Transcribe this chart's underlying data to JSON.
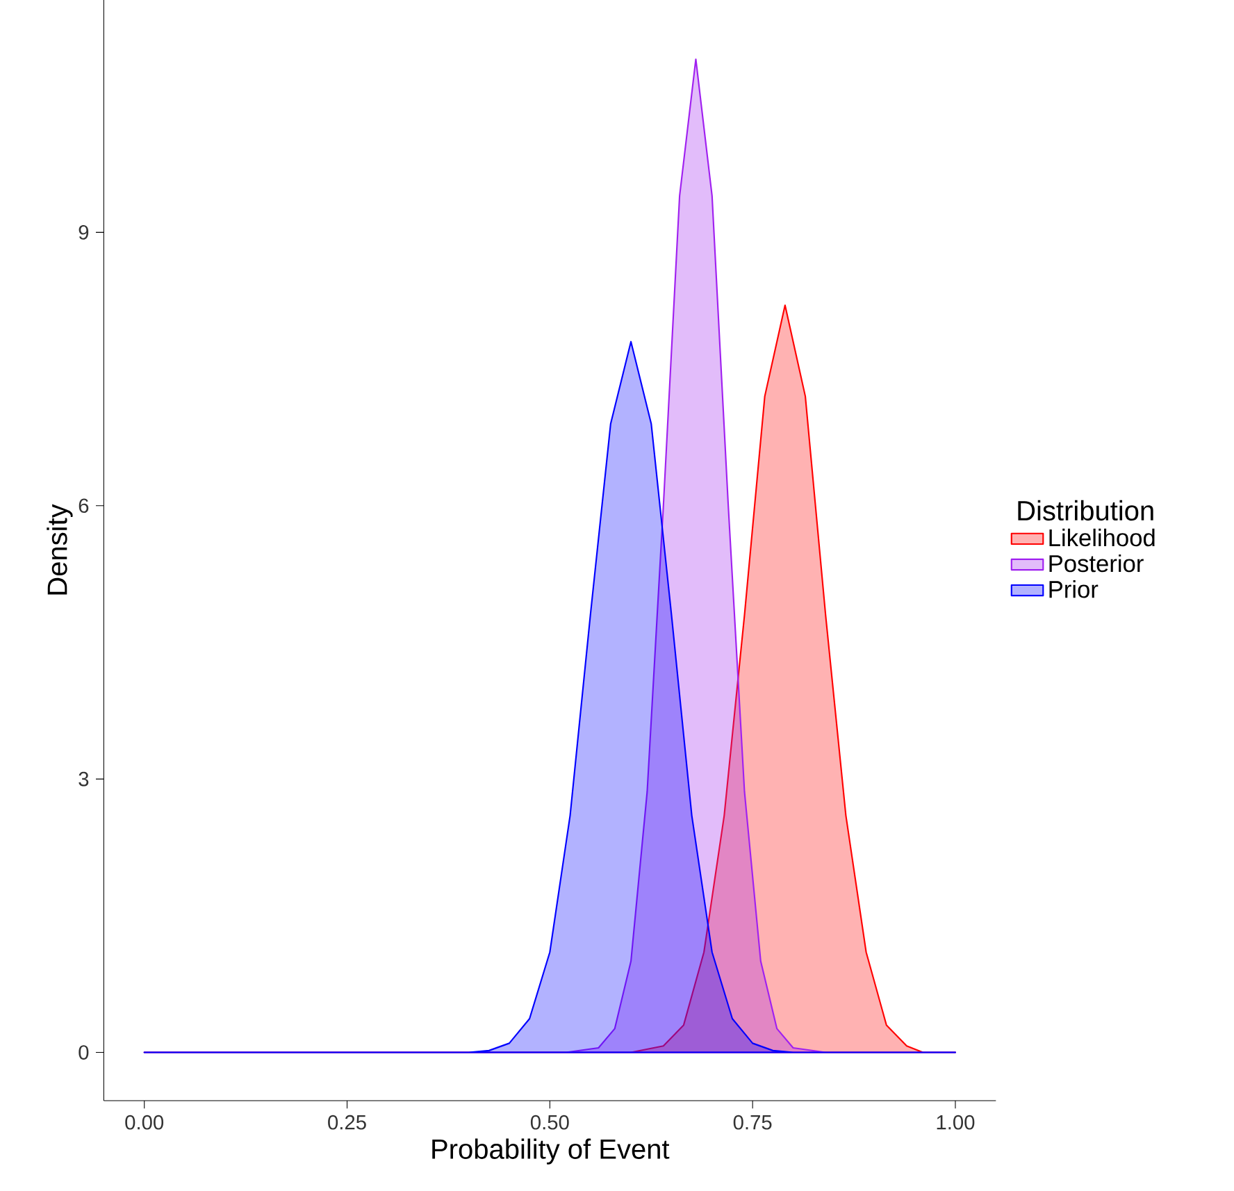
{
  "chart_data": {
    "type": "area",
    "xlabel": "Probability of Event",
    "ylabel": "Density",
    "legend_title": "Distribution",
    "legend": "right",
    "grid": false,
    "xlim": [
      -0.05,
      1.05
    ],
    "ylim": [
      -0.53,
      11.55
    ],
    "xticks": [
      {
        "value": 0,
        "label": "0.00"
      },
      {
        "value": 0.25,
        "label": "0.25"
      },
      {
        "value": 0.5,
        "label": "0.50"
      },
      {
        "value": 0.75,
        "label": "0.75"
      },
      {
        "value": 1,
        "label": "1.00"
      }
    ],
    "yticks": [
      0,
      3,
      6,
      9
    ],
    "series": [
      {
        "name": "Likelihood",
        "color": "#ff0000",
        "x": [
          0,
          0.6,
          0.64,
          0.665,
          0.69,
          0.715,
          0.74,
          0.765,
          0.79,
          0.815,
          0.84,
          0.865,
          0.89,
          0.915,
          0.94,
          0.96,
          1
        ],
        "values": [
          0,
          0,
          0.07,
          0.3,
          1.1,
          2.6,
          4.8,
          7.2,
          8.2,
          7.2,
          4.8,
          2.6,
          1.1,
          0.3,
          0.07,
          0,
          0
        ]
      },
      {
        "name": "Posterior",
        "color": "#a020f0",
        "x": [
          0,
          0.52,
          0.56,
          0.58,
          0.6,
          0.62,
          0.64,
          0.66,
          0.68,
          0.7,
          0.72,
          0.74,
          0.76,
          0.78,
          0.8,
          0.84,
          1
        ],
        "values": [
          0,
          0,
          0.05,
          0.26,
          1.0,
          2.86,
          6.0,
          9.4,
          10.9,
          9.4,
          6.0,
          2.86,
          1.0,
          0.26,
          0.05,
          0,
          0
        ]
      },
      {
        "name": "Prior",
        "color": "#0000ff",
        "x": [
          0,
          0.4,
          0.425,
          0.45,
          0.475,
          0.5,
          0.525,
          0.55,
          0.575,
          0.6,
          0.625,
          0.65,
          0.675,
          0.7,
          0.725,
          0.75,
          0.775,
          0.8,
          1
        ],
        "values": [
          0,
          0,
          0.02,
          0.1,
          0.37,
          1.1,
          2.6,
          4.8,
          6.9,
          7.8,
          6.9,
          4.8,
          2.6,
          1.1,
          0.37,
          0.1,
          0.02,
          0,
          0
        ]
      }
    ]
  }
}
